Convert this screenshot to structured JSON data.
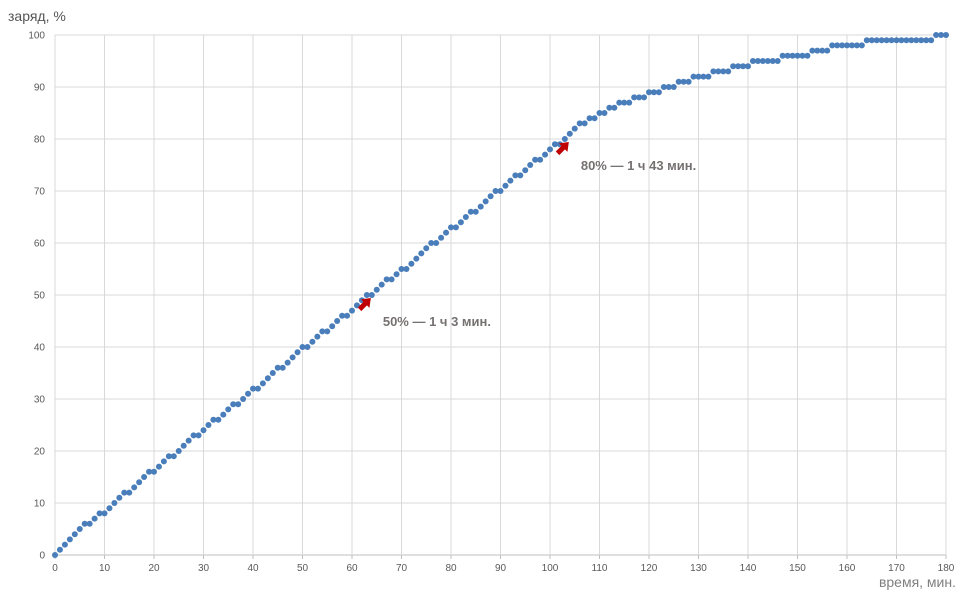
{
  "chart_data": {
    "type": "scatter",
    "ylabel": "заряд, %",
    "xlabel": "время, мин.",
    "xlim": [
      0,
      180
    ],
    "ylim": [
      0,
      100
    ],
    "xticks": [
      0,
      10,
      20,
      30,
      40,
      50,
      60,
      70,
      80,
      90,
      100,
      110,
      120,
      130,
      140,
      150,
      160,
      170,
      180
    ],
    "yticks": [
      0,
      10,
      20,
      30,
      40,
      50,
      60,
      70,
      80,
      90,
      100
    ],
    "grid": true,
    "marker_color": "#4a7ebb",
    "series": [
      {
        "x": [
          0,
          1,
          2,
          3,
          4,
          5,
          6,
          7,
          8,
          9,
          10,
          11,
          12,
          13,
          14,
          15,
          16,
          17,
          18,
          19,
          20,
          21,
          22,
          23,
          24,
          25,
          26,
          27,
          28,
          29,
          30,
          31,
          32,
          33,
          34,
          35,
          36,
          37,
          38,
          39,
          40,
          41,
          42,
          43,
          44,
          45,
          46,
          47,
          48,
          49,
          50,
          51,
          52,
          53,
          54,
          55,
          56,
          57,
          58,
          59,
          60,
          61,
          62,
          63,
          64,
          65,
          66,
          67,
          68,
          69,
          70,
          71,
          72,
          73,
          74,
          75,
          76,
          77,
          78,
          79,
          80,
          81,
          82,
          83,
          84,
          85,
          86,
          87,
          88,
          89,
          90,
          91,
          92,
          93,
          94,
          95,
          96,
          97,
          98,
          99,
          100,
          101,
          102,
          103,
          104,
          105,
          106,
          107,
          108,
          109,
          110,
          111,
          112,
          113,
          114,
          115,
          116,
          117,
          118,
          119,
          120,
          121,
          122,
          123,
          124,
          125,
          126,
          127,
          128,
          129,
          130,
          131,
          132,
          133,
          134,
          135,
          136,
          137,
          138,
          139,
          140,
          141,
          142,
          143,
          144,
          145,
          146,
          147,
          148,
          149,
          150,
          151,
          152,
          153,
          154,
          155,
          156,
          157,
          158,
          159,
          160,
          161,
          162,
          163,
          164,
          165,
          166,
          167,
          168,
          169,
          170,
          171,
          172,
          173,
          174,
          175,
          176,
          177,
          178,
          179,
          180
        ],
        "y": [
          0,
          1,
          2,
          3,
          4,
          5,
          6,
          6,
          7,
          8,
          8,
          9,
          10,
          11,
          12,
          12,
          13,
          14,
          15,
          16,
          16,
          17,
          18,
          19,
          19,
          20,
          21,
          22,
          23,
          23,
          24,
          25,
          26,
          26,
          27,
          28,
          29,
          29,
          30,
          31,
          32,
          32,
          33,
          34,
          35,
          36,
          36,
          37,
          38,
          39,
          40,
          40,
          41,
          42,
          43,
          43,
          44,
          45,
          46,
          46,
          47,
          48,
          49,
          50,
          50,
          51,
          52,
          53,
          53,
          54,
          55,
          55,
          56,
          57,
          58,
          59,
          60,
          60,
          61,
          62,
          63,
          63,
          64,
          65,
          66,
          66,
          67,
          68,
          69,
          70,
          70,
          71,
          72,
          73,
          73,
          74,
          75,
          76,
          76,
          77,
          78,
          79,
          79,
          80,
          81,
          82,
          83,
          83,
          84,
          84,
          85,
          85,
          86,
          86,
          87,
          87,
          87,
          88,
          88,
          88,
          89,
          89,
          89,
          90,
          90,
          90,
          91,
          91,
          91,
          92,
          92,
          92,
          92,
          93,
          93,
          93,
          93,
          94,
          94,
          94,
          94,
          95,
          95,
          95,
          95,
          95,
          95,
          96,
          96,
          96,
          96,
          96,
          96,
          97,
          97,
          97,
          97,
          98,
          98,
          98,
          98,
          98,
          98,
          98,
          99,
          99,
          99,
          99,
          99,
          99,
          99,
          99,
          99,
          99,
          99,
          99,
          99,
          99,
          100,
          100,
          100
        ]
      }
    ],
    "annotations": [
      {
        "text": "50% — 1 ч 3 мин.",
        "x": 63,
        "y": 50
      },
      {
        "text": "80% — 1 ч 43 мин.",
        "x": 103,
        "y": 80
      }
    ],
    "annotation_arrow_color": "#c00000"
  }
}
